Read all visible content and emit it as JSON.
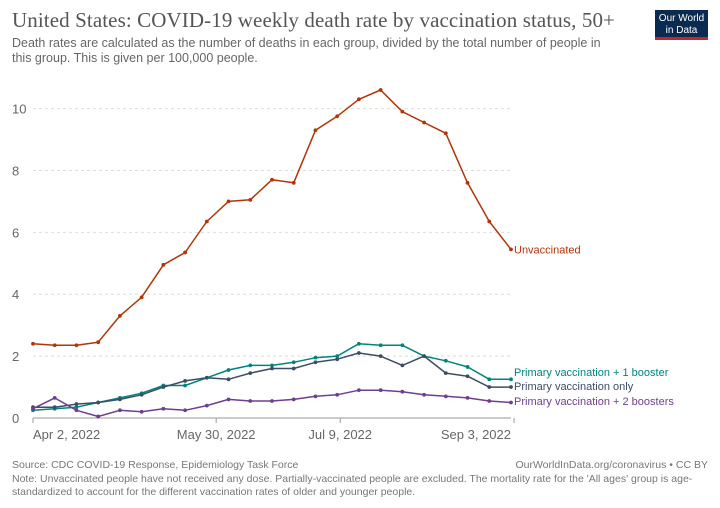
{
  "header": {
    "title": "United States: COVID-19 weekly death rate by vaccination status, 50+",
    "subtitle": "Death rates are calculated as the number of deaths in each group, divided by the total number of people in this group. This is given per 100,000 people."
  },
  "logo": {
    "line1": "Our World",
    "line2": "in Data"
  },
  "footer": {
    "source": "Source: CDC COVID-19 Response, Epidemiology Task Force",
    "url": "OurWorldInData.org/coronavirus • CC BY",
    "note": "Note: Unvaccinated people have not received any dose. Partially-vaccinated people are excluded. The mortality rate for the 'All ages' group is age-standardized to account for the different vaccination rates of older and younger people."
  },
  "chart_data": {
    "type": "line",
    "title": "United States: COVID-19 weekly death rate by vaccination status, 50+",
    "ylim": [
      0,
      10.6
    ],
    "y_ticks": [
      0,
      2,
      4,
      6,
      8,
      10
    ],
    "x_ticks": [
      {
        "label": "Apr 2, 2022",
        "index": 0
      },
      {
        "label": "May 30, 2022",
        "index": 8.43
      },
      {
        "label": "Jul 9, 2022",
        "index": 14.14
      },
      {
        "label": "Sep 3, 2022",
        "index": 22.14
      }
    ],
    "grid": "horizontal-dashed",
    "legend": "right",
    "x": [
      "Apr 2, 2022",
      "Apr 9, 2022",
      "Apr 16, 2022",
      "Apr 23, 2022",
      "Apr 30, 2022",
      "May 7, 2022",
      "May 14, 2022",
      "May 21, 2022",
      "May 28, 2022",
      "Jun 4, 2022",
      "Jun 11, 2022",
      "Jun 18, 2022",
      "Jun 25, 2022",
      "Jul 2, 2022",
      "Jul 9, 2022",
      "Jul 16, 2022",
      "Jul 23, 2022",
      "Jul 30, 2022",
      "Aug 6, 2022",
      "Aug 13, 2022",
      "Aug 20, 2022",
      "Aug 27, 2022",
      "Sep 3, 2022"
    ],
    "series": [
      {
        "name": "Unvaccinated",
        "color": "#b13507",
        "values": [
          2.4,
          2.35,
          2.35,
          2.45,
          3.3,
          3.9,
          4.95,
          5.35,
          6.35,
          7.0,
          7.05,
          7.7,
          7.6,
          9.3,
          9.75,
          10.3,
          10.6,
          9.9,
          9.55,
          9.2,
          7.6,
          6.35,
          5.45
        ]
      },
      {
        "name": "Primary vaccination + 1 booster",
        "color": "#00847e",
        "values": [
          0.25,
          0.3,
          0.35,
          0.5,
          0.65,
          0.8,
          1.05,
          1.05,
          1.3,
          1.55,
          1.7,
          1.7,
          1.8,
          1.95,
          2.0,
          2.4,
          2.35,
          2.35,
          2.0,
          1.85,
          1.65,
          1.25,
          1.25
        ]
      },
      {
        "name": "Primary vaccination only",
        "color": "#3c4e66",
        "values": [
          0.35,
          0.35,
          0.45,
          0.5,
          0.6,
          0.75,
          1.0,
          1.2,
          1.3,
          1.25,
          1.45,
          1.6,
          1.6,
          1.8,
          1.9,
          2.1,
          2.0,
          1.7,
          2.0,
          1.45,
          1.35,
          1.0,
          1.0
        ]
      },
      {
        "name": "Primary vaccination + 2 boosters",
        "color": "#6d3e91",
        "values": [
          0.3,
          0.65,
          0.25,
          0.05,
          0.25,
          0.2,
          0.3,
          0.25,
          0.4,
          0.6,
          0.55,
          0.55,
          0.6,
          0.7,
          0.75,
          0.9,
          0.9,
          0.85,
          0.75,
          0.7,
          0.65,
          0.55,
          0.5
        ]
      }
    ]
  }
}
